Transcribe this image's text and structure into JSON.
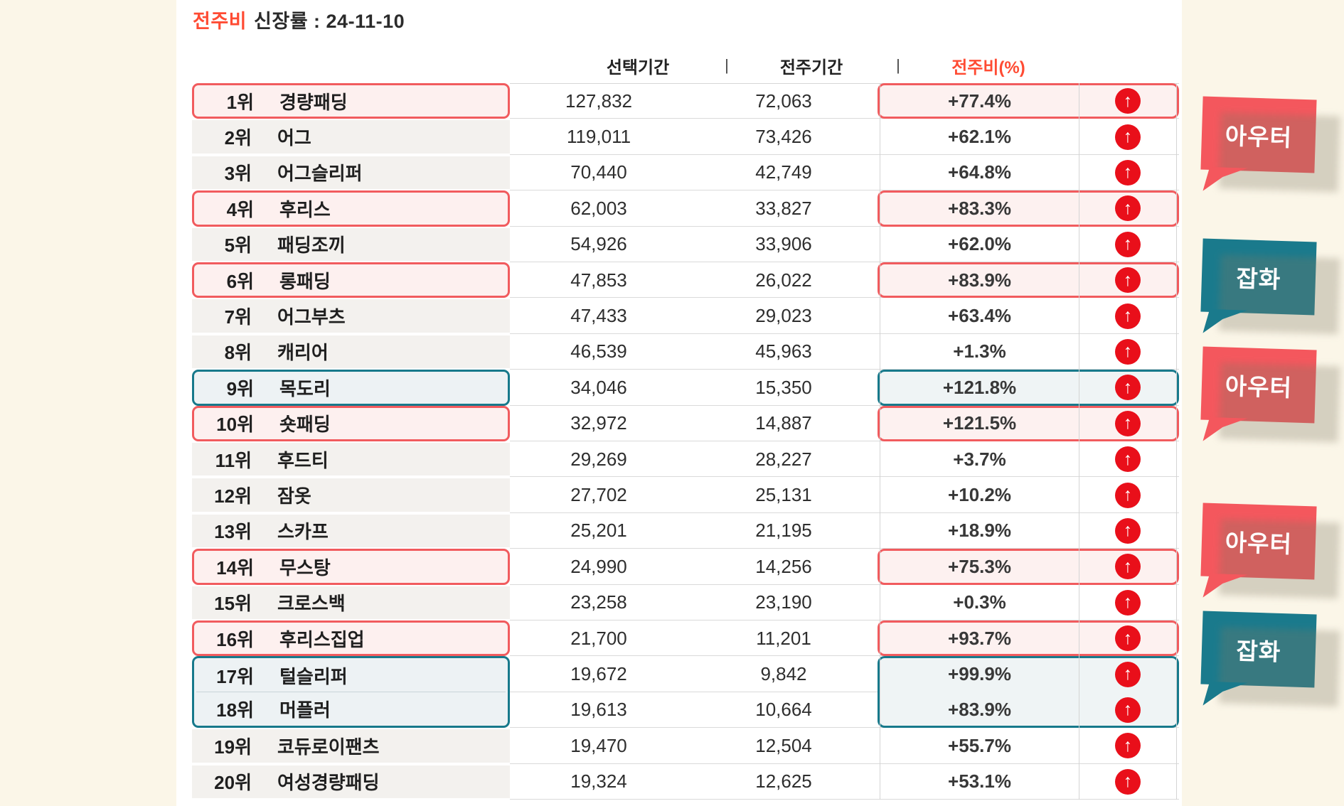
{
  "title": {
    "prefix_red": "전주비",
    "rest": "신장률 : 24-11-10"
  },
  "table": {
    "headers": {
      "selected_period": "선택기간",
      "previous_period": "전주기간",
      "change_percent": "전주비(%)",
      "divider": "|"
    },
    "rows": [
      {
        "rank": "1위",
        "keyword": "경량패딩",
        "selected": "127,832",
        "previous": "72,063",
        "change": "+77.4%",
        "highlight": "red"
      },
      {
        "rank": "2위",
        "keyword": "어그",
        "selected": "119,011",
        "previous": "73,426",
        "change": "+62.1%",
        "highlight": null
      },
      {
        "rank": "3위",
        "keyword": "어그슬리퍼",
        "selected": "70,440",
        "previous": "42,749",
        "change": "+64.8%",
        "highlight": null
      },
      {
        "rank": "4위",
        "keyword": "후리스",
        "selected": "62,003",
        "previous": "33,827",
        "change": "+83.3%",
        "highlight": "red"
      },
      {
        "rank": "5위",
        "keyword": "패딩조끼",
        "selected": "54,926",
        "previous": "33,906",
        "change": "+62.0%",
        "highlight": null
      },
      {
        "rank": "6위",
        "keyword": "롱패딩",
        "selected": "47,853",
        "previous": "26,022",
        "change": "+83.9%",
        "highlight": "red"
      },
      {
        "rank": "7위",
        "keyword": "어그부츠",
        "selected": "47,433",
        "previous": "29,023",
        "change": "+63.4%",
        "highlight": null
      },
      {
        "rank": "8위",
        "keyword": "캐리어",
        "selected": "46,539",
        "previous": "45,963",
        "change": "+1.3%",
        "highlight": null
      },
      {
        "rank": "9위",
        "keyword": "목도리",
        "selected": "34,046",
        "previous": "15,350",
        "change": "+121.8%",
        "highlight": "teal"
      },
      {
        "rank": "10위",
        "keyword": "숏패딩",
        "selected": "32,972",
        "previous": "14,887",
        "change": "+121.5%",
        "highlight": "red"
      },
      {
        "rank": "11위",
        "keyword": "후드티",
        "selected": "29,269",
        "previous": "28,227",
        "change": "+3.7%",
        "highlight": null
      },
      {
        "rank": "12위",
        "keyword": "잠옷",
        "selected": "27,702",
        "previous": "25,131",
        "change": "+10.2%",
        "highlight": null
      },
      {
        "rank": "13위",
        "keyword": "스카프",
        "selected": "25,201",
        "previous": "21,195",
        "change": "+18.9%",
        "highlight": null
      },
      {
        "rank": "14위",
        "keyword": "무스탕",
        "selected": "24,990",
        "previous": "14,256",
        "change": "+75.3%",
        "highlight": "red"
      },
      {
        "rank": "15위",
        "keyword": "크로스백",
        "selected": "23,258",
        "previous": "23,190",
        "change": "+0.3%",
        "highlight": null
      },
      {
        "rank": "16위",
        "keyword": "후리스집업",
        "selected": "21,700",
        "previous": "11,201",
        "change": "+93.7%",
        "highlight": "red"
      },
      {
        "rank": "17위",
        "keyword": "털슬리퍼",
        "selected": "19,672",
        "previous": "9,842",
        "change": "+99.9%",
        "highlight": "teal-start"
      },
      {
        "rank": "18위",
        "keyword": "머플러",
        "selected": "19,613",
        "previous": "10,664",
        "change": "+83.9%",
        "highlight": "teal-end"
      },
      {
        "rank": "19위",
        "keyword": "코듀로이팬츠",
        "selected": "19,470",
        "previous": "12,504",
        "change": "+55.7%",
        "highlight": null
      },
      {
        "rank": "20위",
        "keyword": "여성경량패딩",
        "selected": "19,324",
        "previous": "12,625",
        "change": "+53.1%",
        "highlight": null
      }
    ]
  },
  "callouts": [
    {
      "label": "아우터",
      "color": "red"
    },
    {
      "label": "잡화",
      "color": "teal"
    },
    {
      "label": "아우터",
      "color": "red"
    },
    {
      "label": "아우터",
      "color": "red"
    },
    {
      "label": "잡화",
      "color": "teal"
    }
  ],
  "icons": {
    "up_arrow": "↑"
  },
  "colors": {
    "page_bg": "#FBF6E8",
    "accent_red": "#FF4B33",
    "highlight_red_border": "#F15B5E",
    "highlight_red_bg": "#FDF1F0",
    "highlight_teal_border": "#17798B",
    "highlight_teal_bg": "#EFF4F5",
    "arrow_red": "#E90F1A",
    "bubble_red": "#F4575D",
    "bubble_teal": "#1A7A8C"
  }
}
